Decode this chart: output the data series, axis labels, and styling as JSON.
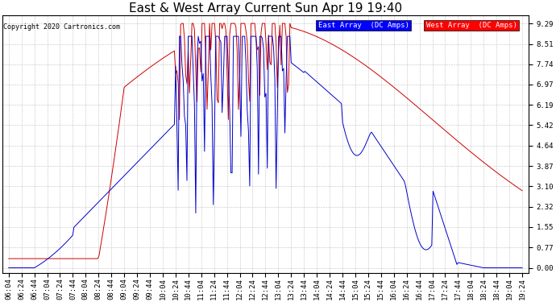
{
  "title": "East & West Array Current Sun Apr 19 19:40",
  "copyright": "Copyright 2020 Cartronics.com",
  "legend_east": "East Array  (DC Amps)",
  "legend_west": "West Array  (DC Amps)",
  "yticks": [
    0.0,
    0.77,
    1.55,
    2.32,
    3.1,
    3.87,
    4.64,
    5.42,
    6.19,
    6.97,
    7.74,
    8.51,
    9.29
  ],
  "ylim": [
    -0.2,
    9.6
  ],
  "bg_color": "#ffffff",
  "plot_bg_color": "#ffffff",
  "grid_color": "#bbbbbb",
  "east_color": "#0000cc",
  "west_color": "#cc0000",
  "title_fontsize": 11,
  "tick_fontsize": 6.5,
  "xlabel_rotation": 90,
  "linewidth": 0.7
}
